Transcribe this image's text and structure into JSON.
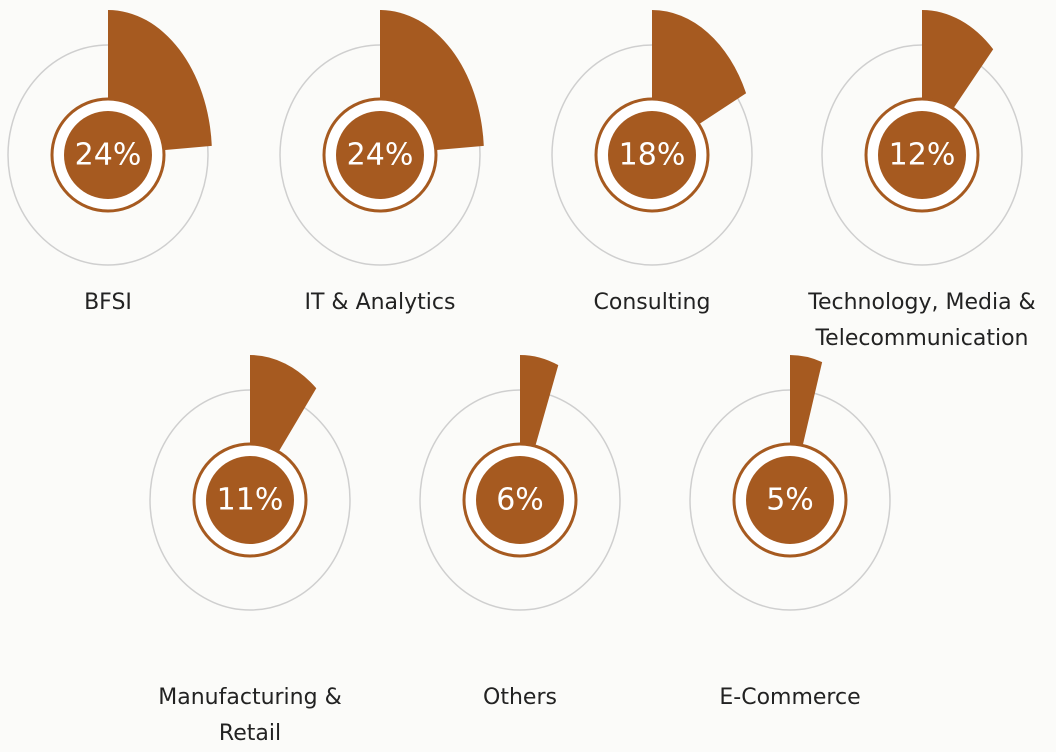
{
  "chart_data": {
    "type": "radial",
    "categories": [
      "BFSI",
      "IT & Analytics",
      "Consulting",
      "Technology, Media & Telecommunication",
      "Manufacturing & Retail",
      "Others",
      "E-Commerce"
    ],
    "values": [
      24,
      24,
      18,
      12,
      11,
      6,
      5
    ],
    "value_labels": [
      "24%",
      "24%",
      "18%",
      "12%",
      "11%",
      "6%",
      "5%"
    ],
    "color": "#a65a20"
  }
}
